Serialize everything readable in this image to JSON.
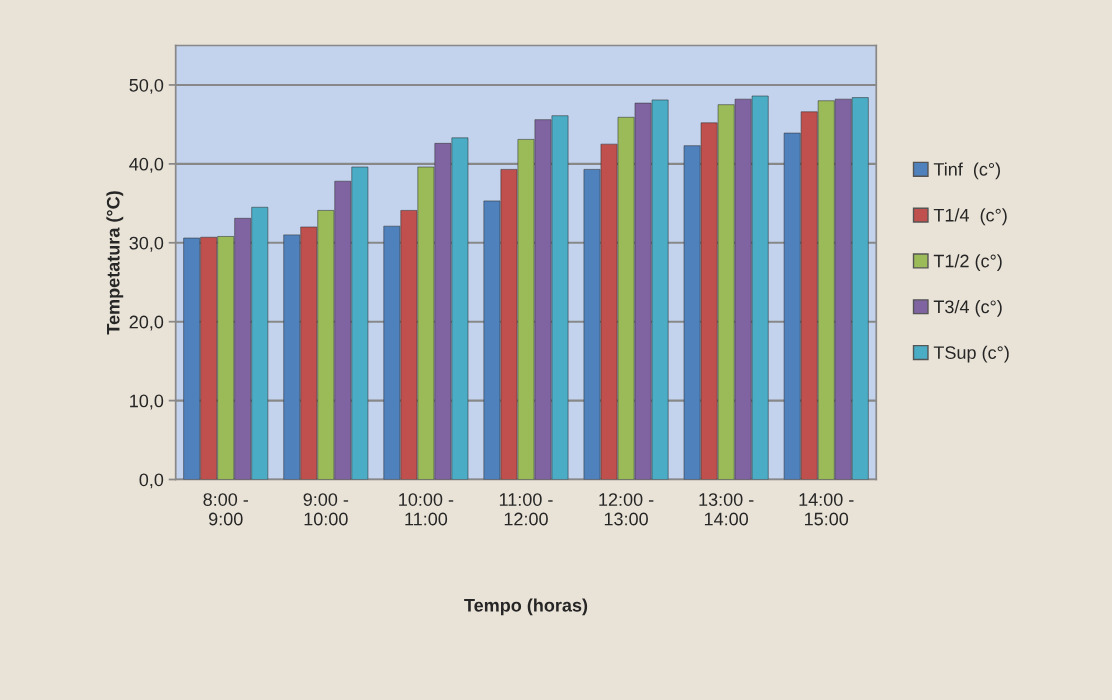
{
  "chart_data": {
    "type": "bar",
    "xlabel": "Tempo (horas)",
    "ylabel": "Tempetatura (°C)",
    "categories": [
      "8:00 -\n9:00",
      "9:00 -\n10:00",
      "10:00 -\n11:00",
      "11:00 -\n12:00",
      "12:00 -\n13:00",
      "13:00 -\n14:00",
      "14:00 -\n15:00"
    ],
    "series": [
      {
        "name": "Tinf  (c°)",
        "color": "#4f81bd",
        "values": [
          30.6,
          31.0,
          32.1,
          35.3,
          39.3,
          42.3,
          43.9
        ]
      },
      {
        "name": "T1/4  (c°)",
        "color": "#c0504d",
        "values": [
          30.7,
          32.0,
          34.1,
          39.3,
          42.5,
          45.2,
          46.6
        ]
      },
      {
        "name": "T1/2 (c°)",
        "color": "#9bbb59",
        "values": [
          30.8,
          34.1,
          39.6,
          43.1,
          45.9,
          47.5,
          48.0
        ]
      },
      {
        "name": "T3/4 (c°)",
        "color": "#8064a2",
        "values": [
          33.1,
          37.8,
          42.6,
          45.6,
          47.7,
          48.2,
          48.2
        ]
      },
      {
        "name": "TSup (c°)",
        "color": "#4bacc6",
        "values": [
          34.5,
          39.6,
          43.3,
          46.1,
          48.1,
          48.6,
          48.4
        ]
      }
    ],
    "ylim": [
      0,
      55
    ],
    "yticks": [
      {
        "value": 0,
        "label": "0,0"
      },
      {
        "value": 10,
        "label": "10,0"
      },
      {
        "value": 20,
        "label": "20,0"
      },
      {
        "value": 30,
        "label": "30,0"
      },
      {
        "value": 40,
        "label": "40,0"
      },
      {
        "value": 50,
        "label": "50,0"
      }
    ],
    "grid": "y",
    "legend": "right"
  }
}
